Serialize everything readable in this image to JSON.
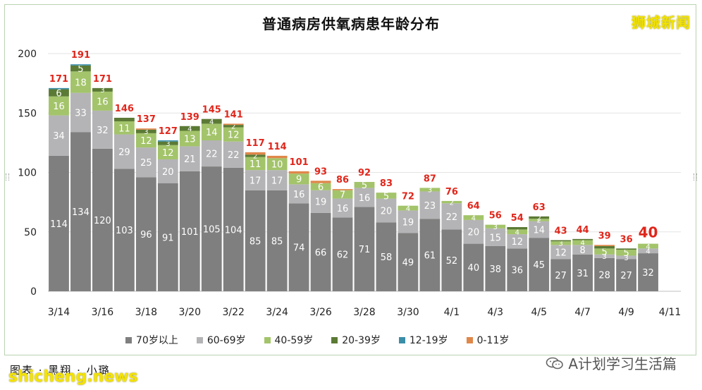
{
  "title": "普通病房供氧病患年龄分布",
  "brand": "狮城新闻",
  "credit": "图表 · 黑翔 · 小璐",
  "wechat_label": "A计划学习生活篇",
  "watermark": "shicheng.news",
  "chart_data": {
    "type": "bar",
    "stacked": true,
    "categories": [
      "3/14",
      "3/15",
      "3/16",
      "3/17",
      "3/18",
      "3/19",
      "3/20",
      "3/21",
      "3/22",
      "3/23",
      "3/24",
      "3/25",
      "3/26",
      "3/27",
      "3/28",
      "3/29",
      "3/30",
      "3/31",
      "4/1",
      "4/2",
      "4/3",
      "4/4",
      "4/5",
      "4/6",
      "4/7",
      "4/8",
      "4/9",
      "4/10",
      "4/11"
    ],
    "x_tick_labels": [
      "3/14",
      "3/16",
      "3/18",
      "3/20",
      "3/22",
      "3/24",
      "3/26",
      "3/28",
      "3/30",
      "4/1",
      "4/3",
      "4/5",
      "4/7",
      "4/9",
      "4/11"
    ],
    "ylim": [
      0,
      200
    ],
    "yticks": [
      0,
      50,
      100,
      150,
      200
    ],
    "gridlines": true,
    "legend_position": "bottom",
    "series": [
      {
        "name": "70岁以上",
        "color": "#7f7f7f",
        "label_color": "#ffffff",
        "values": [
          114,
          134,
          120,
          103,
          96,
          91,
          101,
          105,
          104,
          85,
          85,
          74,
          66,
          62,
          71,
          58,
          49,
          61,
          52,
          40,
          38,
          36,
          45,
          27,
          31,
          28,
          27,
          32,
          null
        ]
      },
      {
        "name": "60-69岁",
        "color": "#b4b4b6",
        "label_color": "#ffffff",
        "values": [
          34,
          33,
          32,
          29,
          25,
          20,
          21,
          22,
          22,
          17,
          17,
          16,
          19,
          16,
          16,
          20,
          19,
          23,
          22,
          20,
          15,
          12,
          14,
          12,
          8,
          3,
          3,
          4,
          null
        ]
      },
      {
        "name": "40-59岁",
        "color": "#a3c46a",
        "label_color": "#ffffff",
        "values": [
          16,
          18,
          16,
          11,
          12,
          12,
          13,
          14,
          12,
          11,
          10,
          9,
          6,
          7,
          5,
          5,
          4,
          3,
          2,
          4,
          3,
          4,
          2,
          3,
          4,
          5,
          5,
          4,
          null
        ]
      },
      {
        "name": "20-39岁",
        "color": "#5b7a35",
        "label_color": "#ffffff",
        "values": [
          6,
          5,
          3,
          3,
          3,
          3,
          4,
          4,
          2,
          2,
          0,
          0,
          0,
          0,
          0,
          0,
          0,
          0,
          0,
          0,
          0,
          2,
          2,
          1,
          1,
          2,
          1,
          0,
          null
        ]
      },
      {
        "name": "12-19岁",
        "color": "#3a8ea8",
        "label_color": "#ffffff",
        "values": [
          1,
          1,
          0,
          0,
          0,
          1,
          0,
          0,
          0,
          0,
          0,
          0,
          0,
          0,
          0,
          0,
          0,
          0,
          0,
          0,
          0,
          0,
          0,
          0,
          0,
          0,
          0,
          0,
          null
        ]
      },
      {
        "name": "0-11岁",
        "color": "#e0874a",
        "label_color": "#ffffff",
        "values": [
          0,
          0,
          0,
          0,
          1,
          0,
          0,
          0,
          1,
          2,
          2,
          2,
          2,
          1,
          0,
          0,
          0,
          0,
          0,
          0,
          0,
          0,
          0,
          0,
          0,
          1,
          0,
          0,
          null
        ]
      }
    ],
    "segment_labels_shown": [
      [
        114,
        34,
        16,
        6,
        null,
        null
      ],
      [
        134,
        33,
        18,
        5,
        null,
        null
      ],
      [
        120,
        32,
        16,
        3,
        null,
        null
      ],
      [
        103,
        29,
        11,
        null,
        null,
        null
      ],
      [
        96,
        25,
        12,
        3,
        null,
        null
      ],
      [
        91,
        20,
        12,
        3,
        null,
        null
      ],
      [
        101,
        21,
        13,
        4,
        null,
        null
      ],
      [
        105,
        22,
        14,
        4,
        null,
        null
      ],
      [
        104,
        22,
        12,
        2,
        null,
        null
      ],
      [
        85,
        17,
        11,
        2,
        null,
        null
      ],
      [
        85,
        17,
        10,
        2,
        null,
        null
      ],
      [
        74,
        16,
        9,
        null,
        null,
        null
      ],
      [
        66,
        19,
        6,
        null,
        null,
        null
      ],
      [
        62,
        16,
        7,
        null,
        null,
        null
      ],
      [
        71,
        16,
        5,
        null,
        null,
        null
      ],
      [
        58,
        20,
        5,
        null,
        null,
        null
      ],
      [
        49,
        19,
        4,
        null,
        null,
        null
      ],
      [
        61,
        23,
        3,
        null,
        null,
        null
      ],
      [
        52,
        22,
        2,
        null,
        null,
        null
      ],
      [
        40,
        20,
        4,
        null,
        null,
        null
      ],
      [
        38,
        15,
        3,
        null,
        null,
        null
      ],
      [
        36,
        12,
        4,
        null,
        null,
        null
      ],
      [
        45,
        14,
        2,
        2,
        null,
        null
      ],
      [
        27,
        12,
        3,
        null,
        null,
        null
      ],
      [
        31,
        8,
        4,
        null,
        null,
        null
      ],
      [
        28,
        3,
        5,
        null,
        null,
        null
      ],
      [
        27,
        3,
        5,
        null,
        null,
        null
      ],
      [
        32,
        4,
        4,
        null,
        null,
        null
      ],
      [
        null,
        null,
        null,
        null,
        null,
        null
      ]
    ],
    "totals": [
      171,
      191,
      171,
      146,
      137,
      127,
      139,
      145,
      141,
      117,
      114,
      101,
      93,
      86,
      92,
      83,
      72,
      87,
      76,
      64,
      56,
      54,
      63,
      43,
      44,
      39,
      36,
      40,
      null
    ],
    "total_label_color": "#e0261b"
  }
}
